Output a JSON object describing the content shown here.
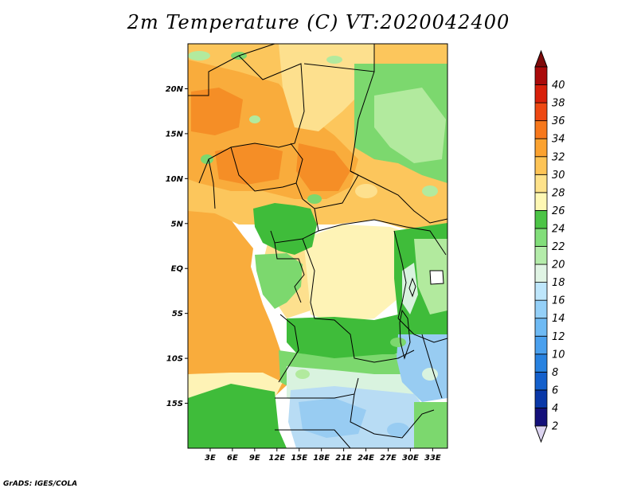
{
  "title": "2m Temperature (C) VT:2020042400",
  "credit": "GrADS: IGES/COLA",
  "map": {
    "lon_range": [
      0,
      35
    ],
    "lat_range": [
      -20,
      25
    ],
    "x_ticks": [
      "3E",
      "6E",
      "9E",
      "12E",
      "15E",
      "18E",
      "21E",
      "24E",
      "27E",
      "30E",
      "33E"
    ],
    "y_ticks": [
      "20N",
      "15N",
      "10N",
      "5N",
      "EQ",
      "5S",
      "10S",
      "15S"
    ]
  },
  "colorbar": {
    "labels": [
      "2",
      "4",
      "6",
      "8",
      "10",
      "12",
      "14",
      "16",
      "18",
      "20",
      "22",
      "24",
      "26",
      "28",
      "30",
      "32",
      "34",
      "36",
      "38",
      "40"
    ],
    "colors": [
      "#14107a",
      "#0a38a8",
      "#1460cc",
      "#2882e0",
      "#4aa0ee",
      "#6ebaf4",
      "#94d0f8",
      "#bee6fb",
      "#e0f4e4",
      "#b4ecaa",
      "#82de7a",
      "#4cc446",
      "#fef8b4",
      "#fee28a",
      "#fdc456",
      "#fba230",
      "#f7781c",
      "#ee4812",
      "#d8200a",
      "#aa0a0a"
    ],
    "under_color": "#dcd4f0",
    "over_color": "#7e0a0a"
  },
  "palette": {
    "very_hot": "#f58e26",
    "hot": "#f9ac3c",
    "warm": "#fcc65c",
    "mild": "#fde08e",
    "mild_pale": "#fef3b6",
    "green_dark": "#3fbc3a",
    "green": "#7cd86e",
    "green_light": "#b2ea9e",
    "cool_pale": "#d9f3df",
    "cool": "#b8dcf4",
    "cool_blue": "#98ccf2",
    "border": "#000000"
  }
}
